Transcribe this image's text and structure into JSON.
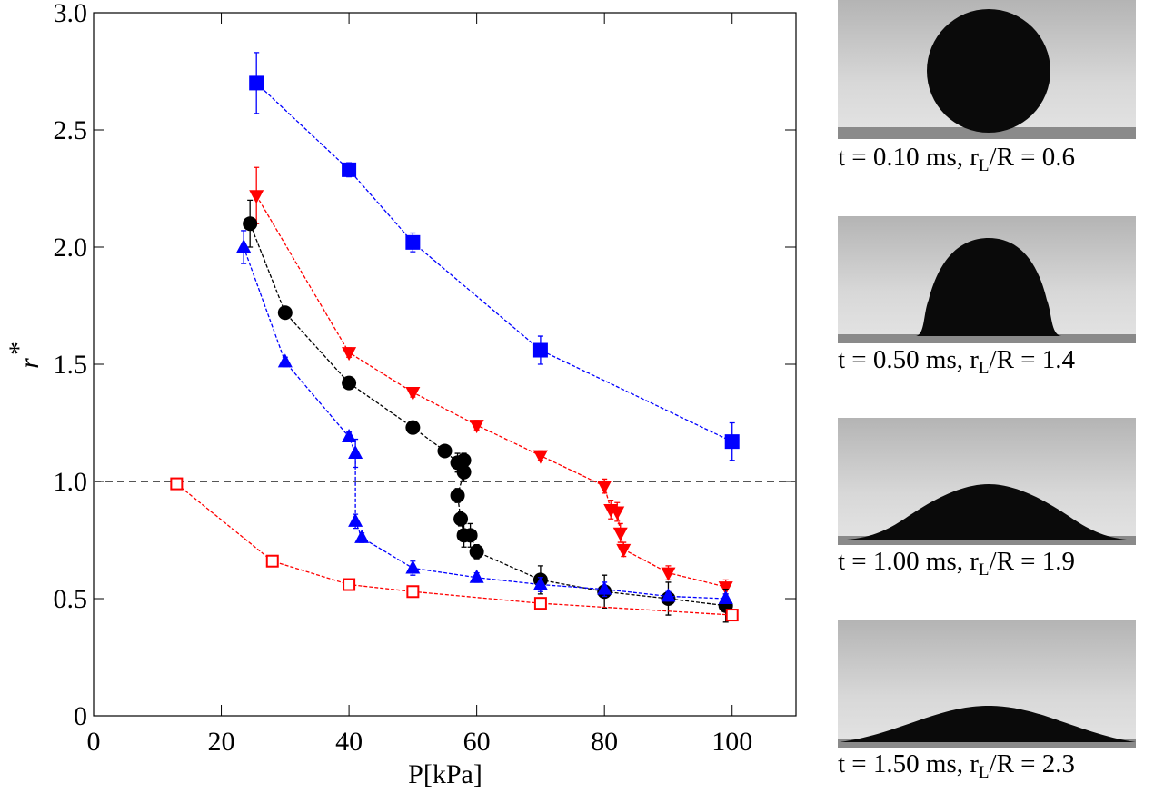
{
  "chart_data": {
    "type": "scatter",
    "xlabel": "P[kPa]",
    "ylabel": {
      "text": "r",
      "superscript": "*"
    },
    "xlim": [
      0,
      110
    ],
    "xticks": [
      0,
      20,
      40,
      60,
      80,
      100
    ],
    "ylim": [
      0,
      3
    ],
    "yticks": [
      0,
      0.5,
      {
        "value": 1,
        "label": "1.0"
      },
      1.5,
      {
        "value": 2,
        "label": "2.0"
      },
      2.5,
      {
        "value": 3,
        "label": "3.0"
      }
    ],
    "reference_line": {
      "value": 1,
      "color": "#555555"
    },
    "series": [
      {
        "marker": "square",
        "color": "#0000ff",
        "x": [
          25.5,
          40,
          50,
          70,
          100
        ],
        "values": [
          2.7,
          2.33,
          2.02,
          1.56,
          1.17
        ],
        "errors": [
          0.13,
          0.03,
          0.04,
          0.06,
          0.08
        ]
      },
      {
        "marker": "triangle-down",
        "color": "#ff0000",
        "x": [
          25.5,
          40,
          50,
          60,
          70,
          80,
          81,
          82,
          82.5,
          83,
          90,
          99
        ],
        "values": [
          2.22,
          1.55,
          1.38,
          1.24,
          1.11,
          0.98,
          0.88,
          0.87,
          0.78,
          0.71,
          0.61,
          0.55
        ],
        "errors": [
          0.12,
          0.02,
          0.02,
          0.02,
          0.02,
          0.03,
          0.04,
          0.04,
          0.04,
          0.03,
          0.03,
          0.03
        ]
      },
      {
        "marker": "circle",
        "color": "#000000",
        "x": [
          24.5,
          30,
          40,
          50,
          55,
          57,
          58,
          58,
          57,
          57.5,
          58,
          59,
          60,
          70,
          80,
          90,
          99
        ],
        "values": [
          2.1,
          1.72,
          1.42,
          1.23,
          1.13,
          1.08,
          1.09,
          1.04,
          0.94,
          0.84,
          0.77,
          0.77,
          0.7,
          0.58,
          0.53,
          0.5,
          0.47
        ],
        "errors": [
          0.1,
          0.02,
          0.02,
          0.02,
          0.02,
          0.04,
          0.03,
          0.04,
          0.03,
          0.03,
          0.05,
          0.05,
          0.03,
          0.06,
          0.07,
          0.07,
          0.07
        ]
      },
      {
        "marker": "triangle-up",
        "color": "#0000ff",
        "x": [
          23.5,
          30,
          40,
          41,
          41,
          42,
          50,
          60,
          70,
          80,
          90,
          99
        ],
        "values": [
          2.0,
          1.51,
          1.19,
          1.12,
          0.83,
          0.76,
          0.63,
          0.59,
          0.56,
          0.54,
          0.51,
          0.5
        ],
        "errors": [
          0.07,
          0.02,
          0.02,
          0.06,
          0.03,
          0.02,
          0.03,
          0.02,
          0.03,
          0.03,
          0.02,
          0.02
        ]
      },
      {
        "marker": "square-open",
        "color": "#ff0000",
        "x": [
          13,
          28,
          40,
          50,
          70,
          100
        ],
        "values": [
          0.99,
          0.66,
          0.56,
          0.53,
          0.48,
          0.43
        ],
        "errors": [
          0.02,
          0.02,
          0.02,
          0.02,
          0.02,
          0.02
        ]
      }
    ]
  },
  "photos": [
    {
      "prefix": "t = 0.10 ms,  r",
      "sub": "L",
      "suffix": "/R = 0.6"
    },
    {
      "prefix": "t = 0.50 ms,  r",
      "sub": "L",
      "suffix": "/R = 1.4"
    },
    {
      "prefix": "t = 1.00 ms,  r",
      "sub": "L",
      "suffix": "/R = 1.9"
    },
    {
      "prefix": "t = 1.50 ms,  r",
      "sub": "L",
      "suffix": "/R = 2.3"
    }
  ]
}
